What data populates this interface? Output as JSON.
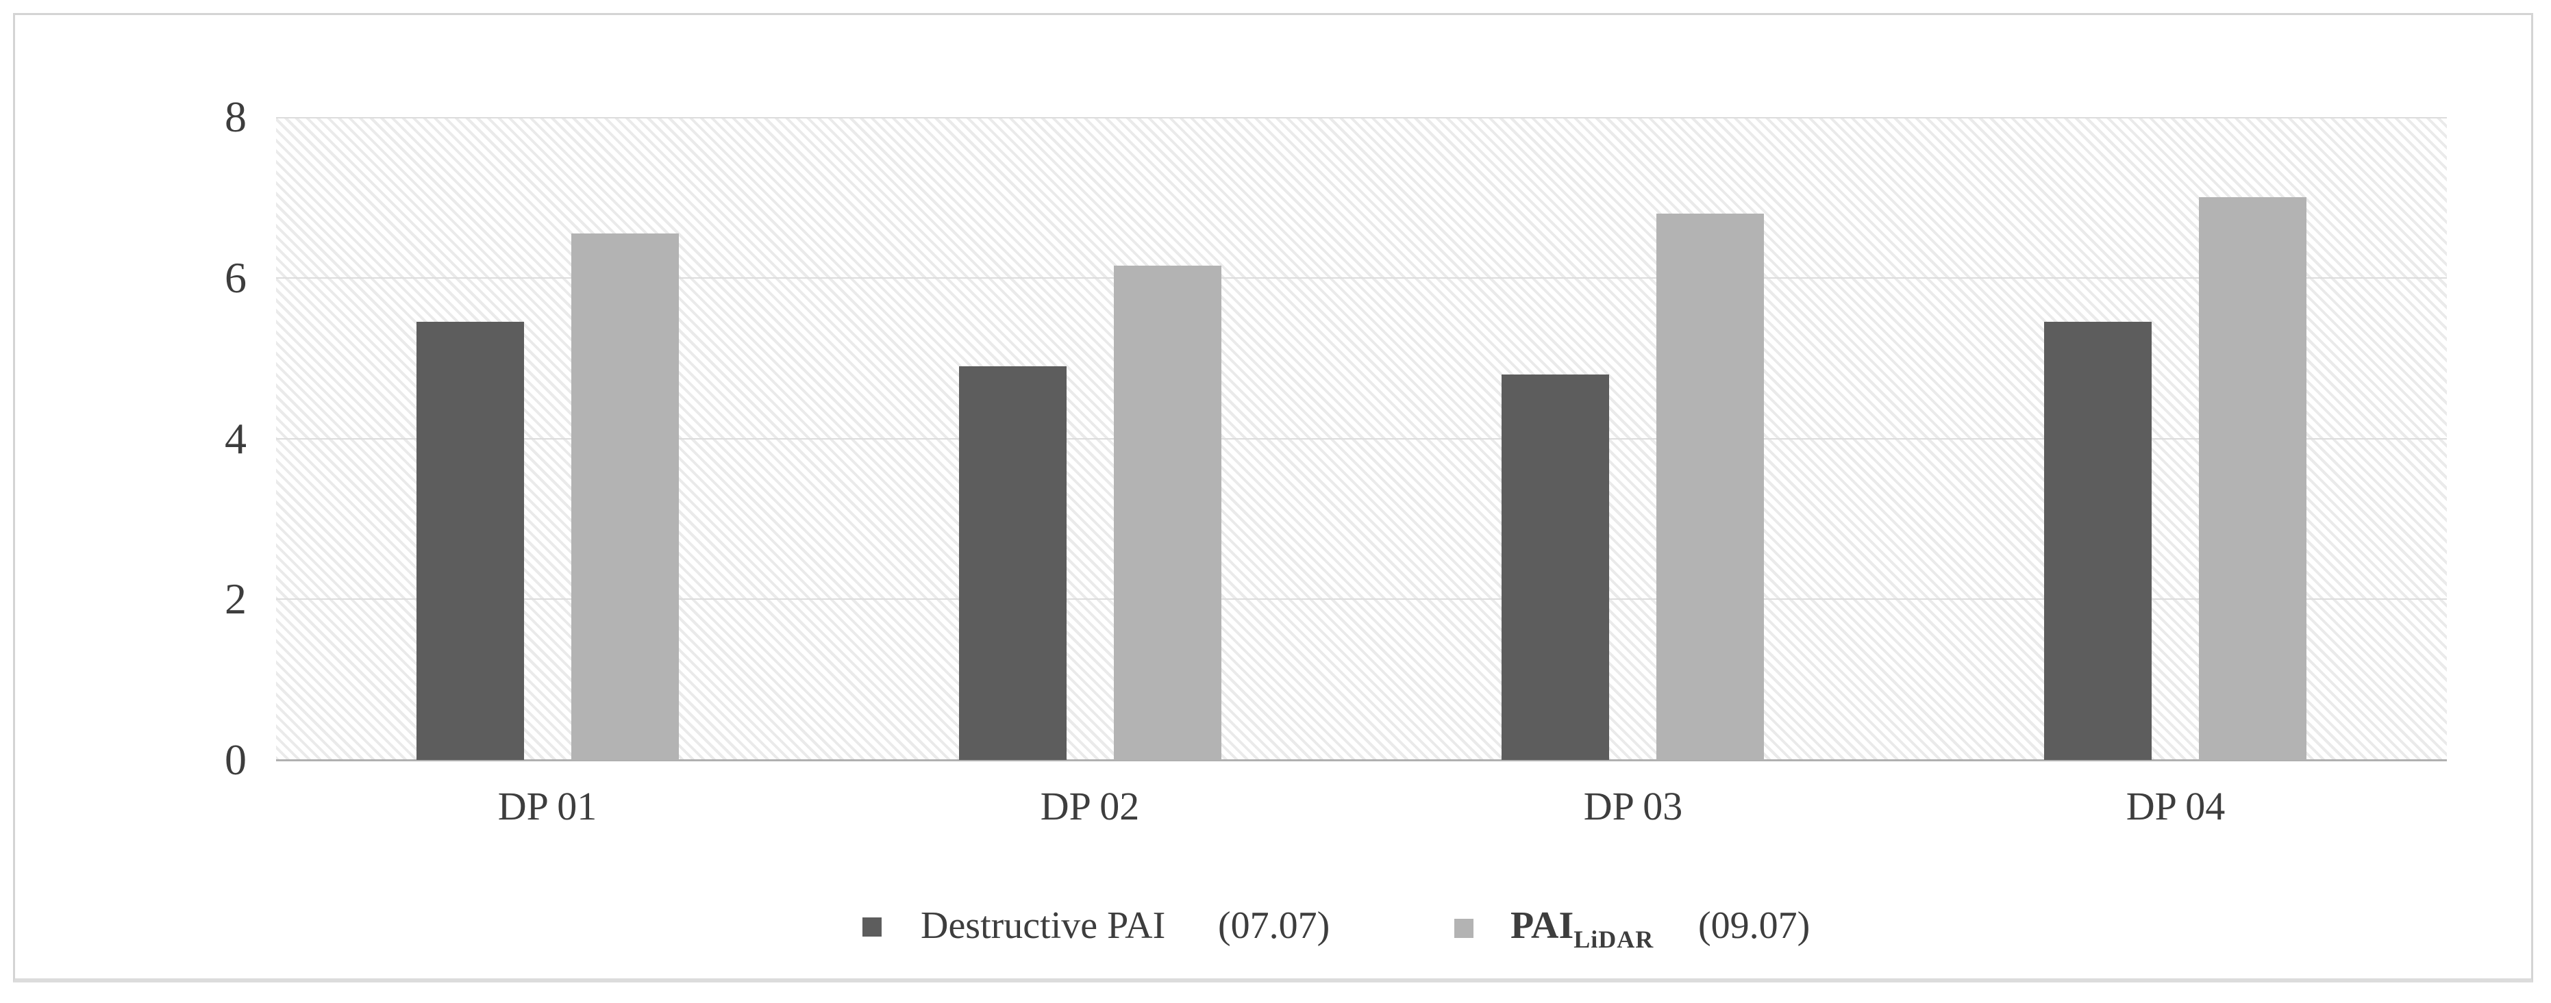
{
  "chart_data": {
    "type": "bar",
    "title": "",
    "xlabel": "",
    "ylabel": "",
    "categories": [
      "DP 01",
      "DP 02",
      "DP 03",
      "DP 04"
    ],
    "series": [
      {
        "name": "Destructive PAI",
        "date": "(07.07)",
        "color": "#5d5d5d",
        "values": [
          5.45,
          4.9,
          4.8,
          5.45
        ]
      },
      {
        "name": "PAI",
        "name_subscript": "LiDAR",
        "date": "(09.07)",
        "color": "#b3b3b3",
        "values": [
          6.55,
          6.15,
          6.8,
          7.0
        ]
      }
    ],
    "ylim": [
      0,
      8
    ],
    "y_ticks": [
      0,
      2,
      4,
      6,
      8
    ],
    "grid": true,
    "legend_position": "bottom",
    "plot_background": "diagonal-hatch"
  }
}
